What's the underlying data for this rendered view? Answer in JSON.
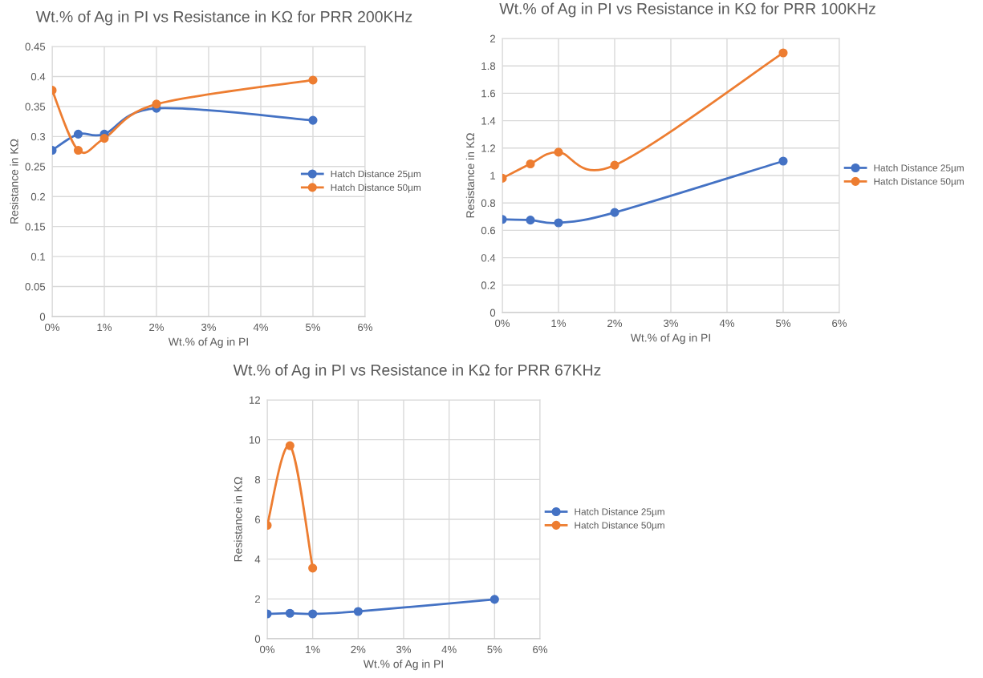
{
  "chart_data": [
    {
      "type": "line",
      "title": "Wt.% of Ag in PI vs Resistance in KΩ for PRR 200KHz",
      "xlabel": "Wt.% of Ag in PI",
      "ylabel": "Resistance in KΩ",
      "x": [
        0,
        0.5,
        1,
        2,
        5
      ],
      "series": [
        {
          "name": "Hatch Distance 25µm",
          "color": "#4472c4",
          "values": [
            0.277,
            0.304,
            0.304,
            0.347,
            0.327
          ]
        },
        {
          "name": "Hatch Distance 50µm",
          "color": "#ed7d31",
          "values": [
            0.377,
            0.277,
            0.297,
            0.354,
            0.394
          ]
        }
      ],
      "xlim": [
        0,
        6
      ],
      "xticks": [
        {
          "value": 0,
          "label": "0%"
        },
        {
          "value": 1,
          "label": "1%"
        },
        {
          "value": 2,
          "label": "2%"
        },
        {
          "value": 3,
          "label": "3%"
        },
        {
          "value": 4,
          "label": "4%"
        },
        {
          "value": 5,
          "label": "5%"
        },
        {
          "value": 6,
          "label": "6%"
        }
      ],
      "ylim": [
        0,
        0.45
      ],
      "yticks": [
        0,
        0.05,
        0.1,
        0.15,
        0.2,
        0.25,
        0.3,
        0.35,
        0.4,
        0.45
      ],
      "grid": true,
      "legend": "right",
      "marker": "circle",
      "line_style": "solid"
    },
    {
      "type": "line",
      "title": "Wt.% of Ag in PI vs Resistance in KΩ for PRR 100KHz",
      "xlabel": "Wt.% of Ag in PI",
      "ylabel": "Resistance in KΩ",
      "x": [
        0,
        0.5,
        1,
        2,
        5
      ],
      "series": [
        {
          "name": "Hatch Distance 25µm",
          "color": "#4472c4",
          "values": [
            0.68,
            0.675,
            0.655,
            0.73,
            1.105
          ]
        },
        {
          "name": "Hatch Distance 50µm",
          "color": "#ed7d31",
          "values": [
            0.98,
            1.085,
            1.17,
            1.075,
            1.895
          ]
        }
      ],
      "xlim": [
        0,
        6
      ],
      "xticks": [
        {
          "value": 0,
          "label": "0%"
        },
        {
          "value": 1,
          "label": "1%"
        },
        {
          "value": 2,
          "label": "2%"
        },
        {
          "value": 3,
          "label": "3%"
        },
        {
          "value": 4,
          "label": "4%"
        },
        {
          "value": 5,
          "label": "5%"
        },
        {
          "value": 6,
          "label": "6%"
        }
      ],
      "ylim": [
        0,
        2
      ],
      "yticks": [
        0,
        0.2,
        0.4,
        0.6,
        0.8,
        1,
        1.2,
        1.4,
        1.6,
        1.8,
        2
      ],
      "grid": true,
      "legend": "right",
      "marker": "circle",
      "line_style": "solid"
    },
    {
      "type": "line",
      "title": "Wt.% of Ag in PI vs Resistance in KΩ for PRR 67KHz",
      "xlabel": "Wt.% of Ag in PI",
      "ylabel": "Resistance in KΩ",
      "series": [
        {
          "name": "Hatch Distance 25µm",
          "color": "#4472c4",
          "x": [
            0,
            0.5,
            1,
            2,
            5
          ],
          "values": [
            1.25,
            1.28,
            1.25,
            1.37,
            1.98
          ]
        },
        {
          "name": "Hatch Distance 50µm",
          "color": "#ed7d31",
          "x": [
            0,
            0.5,
            1
          ],
          "values": [
            5.7,
            9.7,
            3.55
          ]
        }
      ],
      "xlim": [
        0,
        6
      ],
      "xticks": [
        {
          "value": 0,
          "label": "0%"
        },
        {
          "value": 1,
          "label": "1%"
        },
        {
          "value": 2,
          "label": "2%"
        },
        {
          "value": 3,
          "label": "3%"
        },
        {
          "value": 4,
          "label": "4%"
        },
        {
          "value": 5,
          "label": "5%"
        },
        {
          "value": 6,
          "label": "6%"
        }
      ],
      "ylim": [
        0,
        12
      ],
      "yticks": [
        0,
        2,
        4,
        6,
        8,
        10,
        12
      ],
      "grid": true,
      "legend": "right",
      "marker": "circle",
      "line_style": "solid"
    }
  ]
}
